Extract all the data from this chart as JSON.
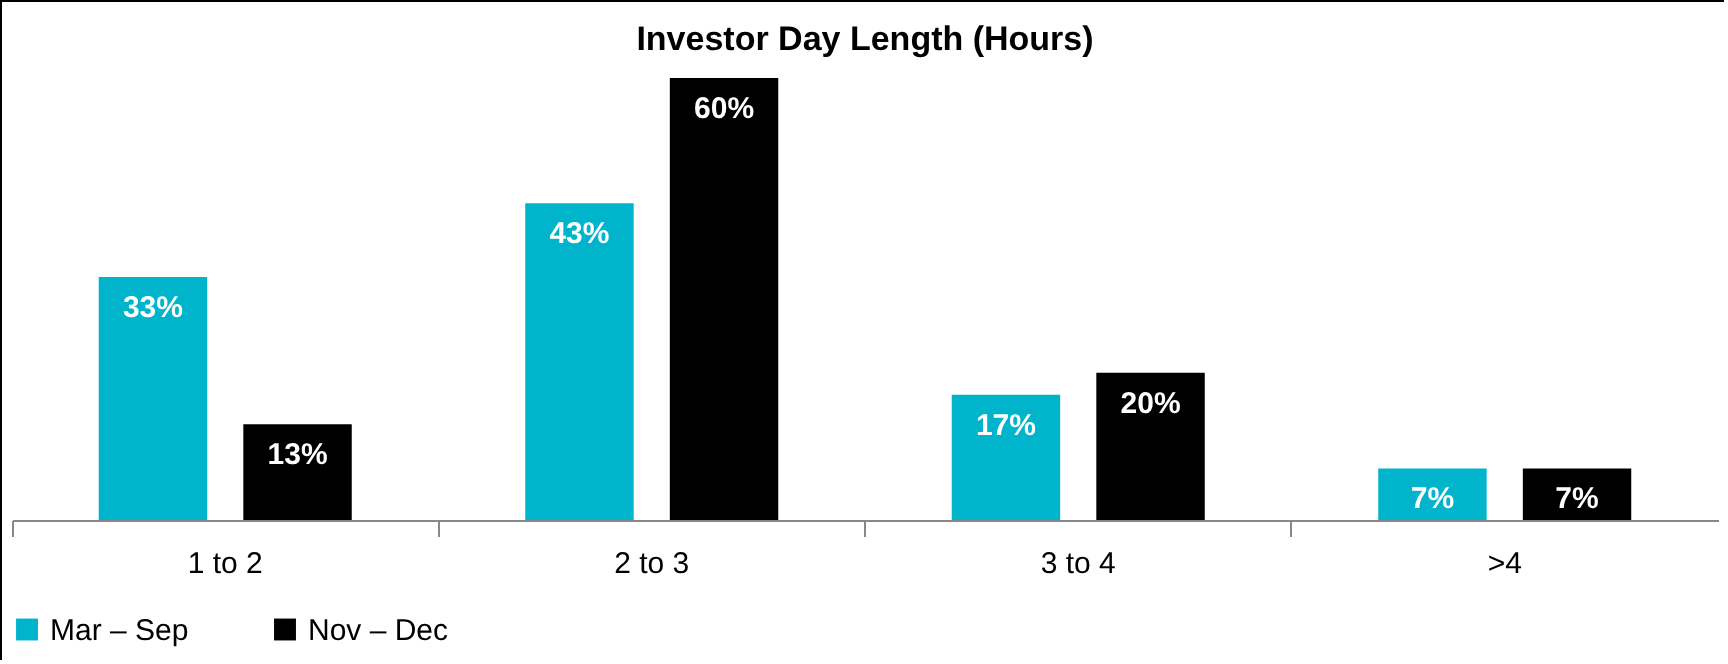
{
  "chart_data": {
    "type": "bar",
    "title": "Investor Day Length (Hours)",
    "categories": [
      "1 to 2",
      "2 to 3",
      "3 to 4",
      ">4"
    ],
    "series": [
      {
        "name": "Mar – Sep",
        "color": "#00b4cc",
        "values": [
          33,
          43,
          17,
          7
        ],
        "value_labels": [
          "33%",
          "43%",
          "17%",
          "7%"
        ]
      },
      {
        "name": "Nov – Dec",
        "color": "#000000",
        "values": [
          13,
          60,
          20,
          7
        ],
        "value_labels": [
          "13%",
          "60%",
          "20%",
          "7%"
        ]
      }
    ],
    "legend": "bottom",
    "grid": false
  }
}
